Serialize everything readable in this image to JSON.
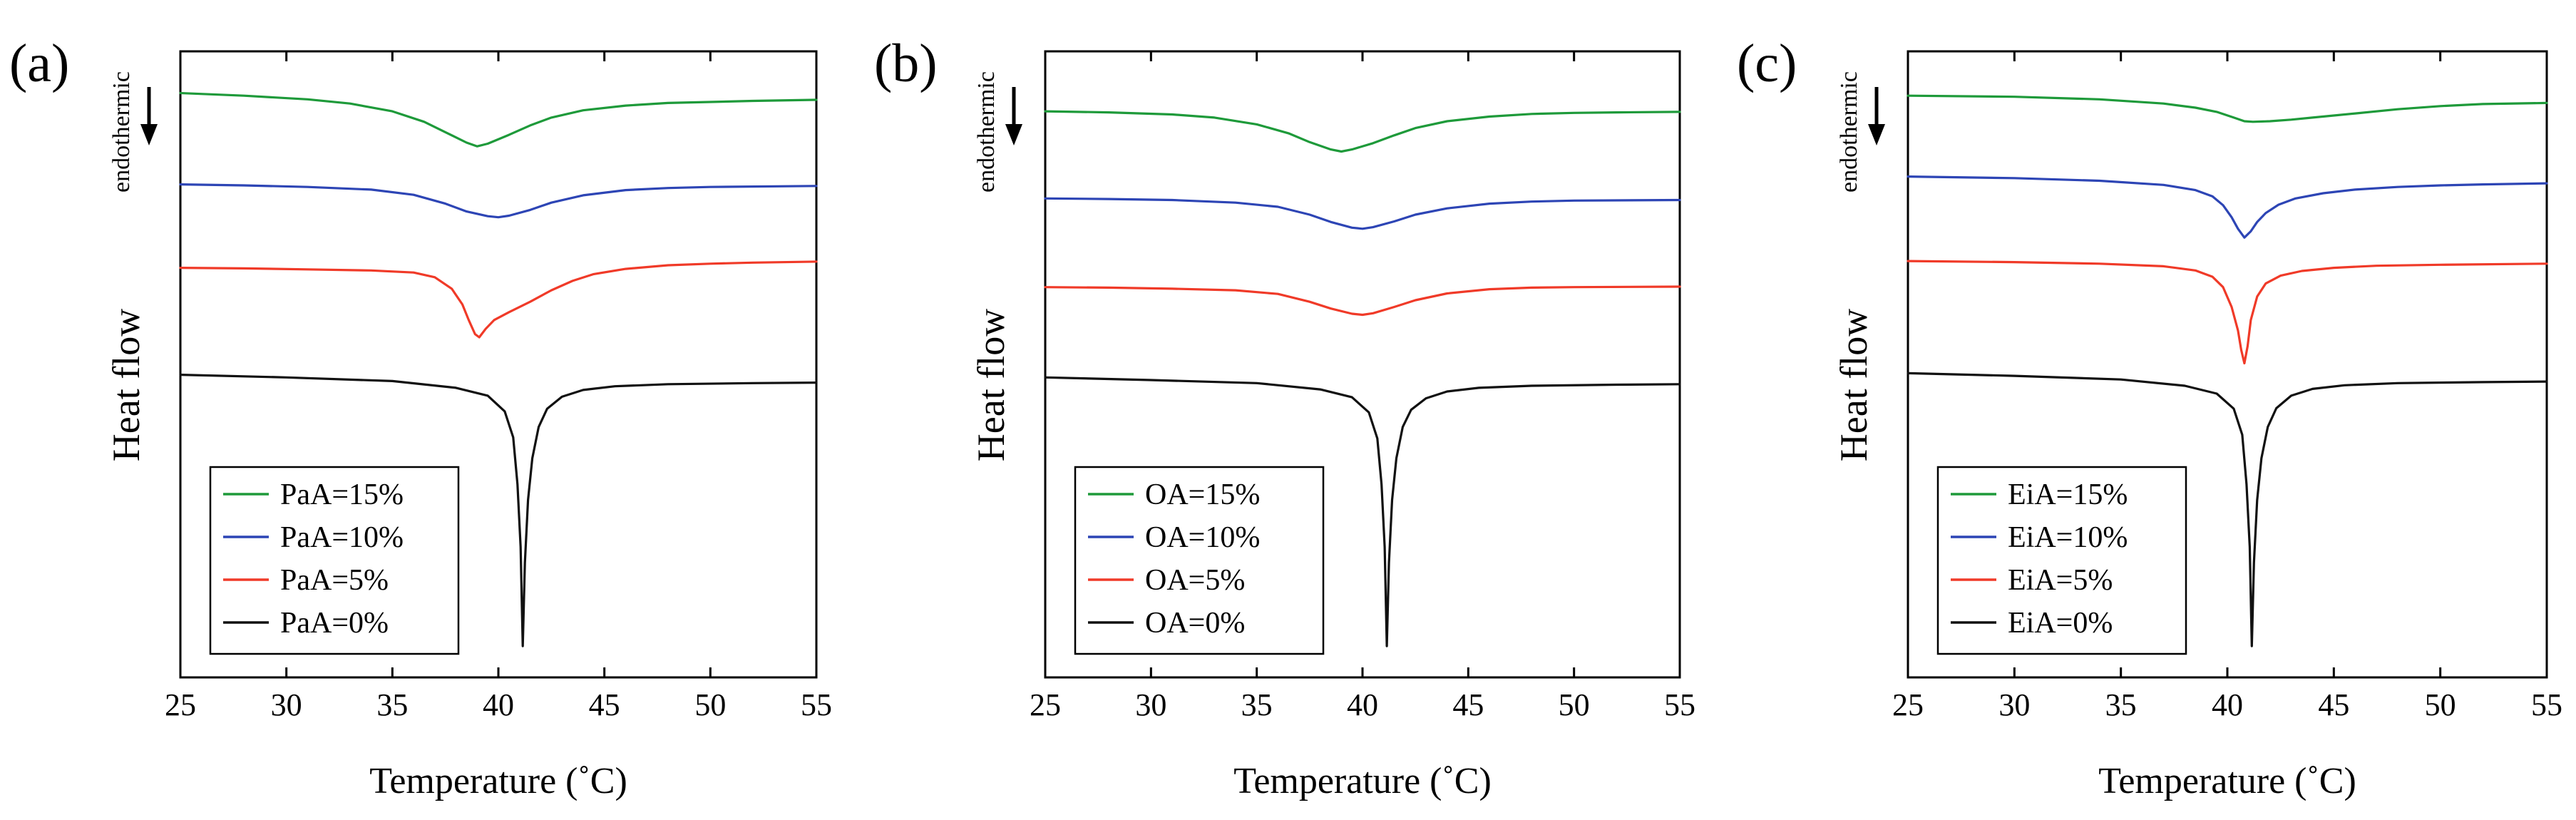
{
  "chart_data": [
    {
      "type": "line",
      "panel_label": "(a)",
      "xlabel": "Temperature (˚C)",
      "ylabel": "Heat flow",
      "annotation": "endothermic",
      "xlim": [
        25,
        55
      ],
      "x_ticks": [
        "25",
        "30",
        "35",
        "40",
        "45",
        "50",
        "55"
      ],
      "ylim": [
        -20,
        100
      ],
      "series": [
        {
          "name": "PaA=15%",
          "color": "#1e9a3a",
          "x": [
            25,
            28,
            31,
            33,
            35,
            36.5,
            37.5,
            38.5,
            39,
            39.5,
            40.5,
            41.5,
            42.5,
            44,
            46,
            48,
            50,
            52,
            55
          ],
          "y": [
            92,
            91.5,
            90.8,
            90,
            88.5,
            86.5,
            84.5,
            82.5,
            81.8,
            82.3,
            84,
            85.8,
            87.3,
            88.7,
            89.6,
            90.1,
            90.3,
            90.5,
            90.7
          ]
        },
        {
          "name": "PaA=10%",
          "color": "#2d45b5",
          "x": [
            25,
            28,
            31,
            34,
            36,
            37.5,
            38.5,
            39.5,
            40,
            40.5,
            41.5,
            42.5,
            44,
            46,
            48,
            50,
            55
          ],
          "y": [
            74.5,
            74.3,
            74,
            73.5,
            72.5,
            70.8,
            69.3,
            68.4,
            68.2,
            68.5,
            69.6,
            71,
            72.4,
            73.4,
            73.8,
            74,
            74.2
          ]
        },
        {
          "name": "PaA=5%",
          "color": "#f03a28",
          "x": [
            25,
            28,
            31,
            34,
            36,
            37,
            37.8,
            38.3,
            38.6,
            38.9,
            39.1,
            39.4,
            39.8,
            40.5,
            41.5,
            42.5,
            43.5,
            44.5,
            46,
            48,
            50,
            52,
            55
          ],
          "y": [
            58.5,
            58.4,
            58.2,
            58,
            57.6,
            56.7,
            54.5,
            51.5,
            48.5,
            45.8,
            45.2,
            46.8,
            48.5,
            50,
            52,
            54.2,
            56,
            57.3,
            58.3,
            59,
            59.3,
            59.5,
            59.7
          ]
        },
        {
          "name": "PaA=0%",
          "color": "#111111",
          "x": [
            25,
            30,
            35,
            38,
            39.5,
            40.3,
            40.7,
            40.9,
            41.05,
            41.15,
            41.25,
            41.4,
            41.6,
            41.9,
            42.3,
            43,
            44,
            45.5,
            48,
            52,
            55
          ],
          "y": [
            38,
            37.5,
            36.8,
            35.5,
            34,
            31,
            26,
            17,
            5,
            -14,
            2,
            14,
            22,
            28,
            31.5,
            33.8,
            35.1,
            35.8,
            36.2,
            36.4,
            36.5
          ]
        }
      ]
    },
    {
      "type": "line",
      "panel_label": "(b)",
      "xlabel": "Temperature (˚C)",
      "ylabel": "Heat flow",
      "annotation": "endothermic",
      "xlim": [
        25,
        55
      ],
      "x_ticks": [
        "25",
        "30",
        "35",
        "40",
        "45",
        "50",
        "55"
      ],
      "ylim": [
        -20,
        100
      ],
      "series": [
        {
          "name": "OA=15%",
          "color": "#1e9a3a",
          "x": [
            25,
            28,
            31,
            33,
            35,
            36.5,
            37.5,
            38.5,
            39,
            39.5,
            40.5,
            41.5,
            42.5,
            44,
            46,
            48,
            50,
            52,
            55
          ],
          "y": [
            88.5,
            88.3,
            87.9,
            87.3,
            86,
            84.3,
            82.6,
            81.2,
            80.8,
            81.2,
            82.4,
            83.9,
            85.3,
            86.6,
            87.5,
            88,
            88.2,
            88.3,
            88.4
          ]
        },
        {
          "name": "OA=10%",
          "color": "#2d45b5",
          "x": [
            25,
            28,
            31,
            34,
            36,
            37.5,
            38.5,
            39.5,
            40,
            40.5,
            41.5,
            42.5,
            44,
            46,
            48,
            50,
            55
          ],
          "y": [
            71.8,
            71.7,
            71.5,
            71,
            70.2,
            68.7,
            67.3,
            66.2,
            66,
            66.3,
            67.4,
            68.7,
            69.9,
            70.8,
            71.2,
            71.4,
            71.5
          ]
        },
        {
          "name": "OA=5%",
          "color": "#f03a28",
          "x": [
            25,
            28,
            31,
            34,
            36,
            37.5,
            38.5,
            39.5,
            40,
            40.5,
            41.5,
            42.5,
            44,
            46,
            48,
            50,
            55
          ],
          "y": [
            54.8,
            54.7,
            54.5,
            54.2,
            53.5,
            52,
            50.7,
            49.7,
            49.5,
            49.8,
            51,
            52.3,
            53.6,
            54.4,
            54.7,
            54.8,
            54.9
          ]
        },
        {
          "name": "OA=0%",
          "color": "#111111",
          "x": [
            25,
            30,
            35,
            38,
            39.5,
            40.3,
            40.7,
            40.9,
            41.05,
            41.15,
            41.25,
            41.4,
            41.6,
            41.9,
            42.3,
            43,
            44,
            45.5,
            48,
            52,
            55
          ],
          "y": [
            37.5,
            37,
            36.4,
            35.2,
            33.7,
            30.8,
            25.8,
            17,
            5,
            -14,
            2,
            14,
            22,
            28,
            31.3,
            33.5,
            34.8,
            35.5,
            35.9,
            36.1,
            36.2
          ]
        }
      ]
    },
    {
      "type": "line",
      "panel_label": "(c)",
      "xlabel": "Temperature (˚C)",
      "ylabel": "Heat flow",
      "annotation": "endothermic",
      "xlim": [
        25,
        55
      ],
      "x_ticks": [
        "25",
        "30",
        "35",
        "40",
        "45",
        "50",
        "55"
      ],
      "ylim": [
        -20,
        100
      ],
      "series": [
        {
          "name": "EiA=15%",
          "color": "#1e9a3a",
          "x": [
            25,
            30,
            34,
            37,
            38.5,
            39.5,
            40.3,
            40.8,
            41.2,
            42,
            43,
            44,
            46,
            48,
            50,
            52,
            55
          ],
          "y": [
            91.5,
            91.3,
            90.8,
            90,
            89.2,
            88.4,
            87.3,
            86.6,
            86.5,
            86.6,
            86.9,
            87.3,
            88.1,
            88.9,
            89.5,
            89.9,
            90.1
          ]
        },
        {
          "name": "EiA=10%",
          "color": "#2d45b5",
          "x": [
            25,
            30,
            34,
            37,
            38.5,
            39.3,
            39.8,
            40.2,
            40.5,
            40.8,
            41.1,
            41.4,
            41.8,
            42.4,
            43.2,
            44.5,
            46,
            48,
            50,
            52,
            55
          ],
          "y": [
            76,
            75.7,
            75.2,
            74.4,
            73.4,
            72.2,
            70.5,
            68.2,
            66,
            64.3,
            65.5,
            67.3,
            69,
            70.6,
            71.8,
            72.8,
            73.5,
            74,
            74.3,
            74.5,
            74.7
          ]
        },
        {
          "name": "EiA=5%",
          "color": "#f03a28",
          "x": [
            25,
            30,
            34,
            37,
            38.5,
            39.3,
            39.8,
            40.2,
            40.5,
            40.65,
            40.8,
            40.95,
            41.1,
            41.4,
            41.8,
            42.5,
            43.5,
            45,
            47,
            50,
            55
          ],
          "y": [
            59.8,
            59.6,
            59.3,
            58.8,
            58,
            56.8,
            54.8,
            51,
            46.5,
            42.8,
            40.2,
            43.5,
            48.5,
            53,
            55.5,
            57,
            57.9,
            58.5,
            58.9,
            59.1,
            59.3
          ]
        },
        {
          "name": "EiA=0%",
          "color": "#111111",
          "x": [
            25,
            30,
            35,
            38,
            39.5,
            40.3,
            40.7,
            40.9,
            41.05,
            41.15,
            41.25,
            41.4,
            41.6,
            41.9,
            42.3,
            43,
            44,
            45.5,
            48,
            52,
            55
          ],
          "y": [
            38.3,
            37.8,
            37.1,
            35.9,
            34.4,
            31.5,
            26.5,
            17,
            5,
            -14,
            2,
            14,
            22,
            28,
            31.6,
            34,
            35.3,
            36,
            36.4,
            36.6,
            36.7
          ]
        }
      ]
    }
  ]
}
